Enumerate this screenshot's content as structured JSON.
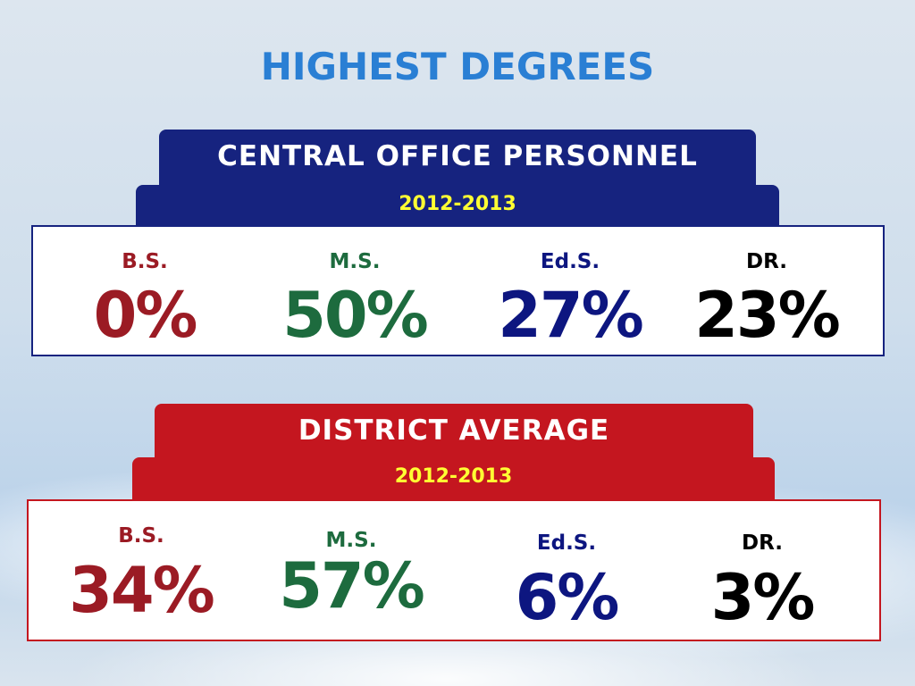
{
  "title": "HIGHEST DEGREES",
  "panels": [
    {
      "header": "CENTRAL OFFICE PERSONNEL",
      "year": "2012-2013",
      "items": [
        {
          "label": "B.S.",
          "value": "0%"
        },
        {
          "label": "M.S.",
          "value": "50%"
        },
        {
          "label": "Ed.S.",
          "value": "27%"
        },
        {
          "label": "DR.",
          "value": "23%"
        }
      ]
    },
    {
      "header": "DISTRICT AVERAGE",
      "year": "2012-2013",
      "items": [
        {
          "label": "B.S.",
          "value": "34%"
        },
        {
          "label": "M.S.",
          "value": "57%"
        },
        {
          "label": "Ed.S.",
          "value": "6%"
        },
        {
          "label": "DR.",
          "value": "3%"
        }
      ]
    }
  ]
}
